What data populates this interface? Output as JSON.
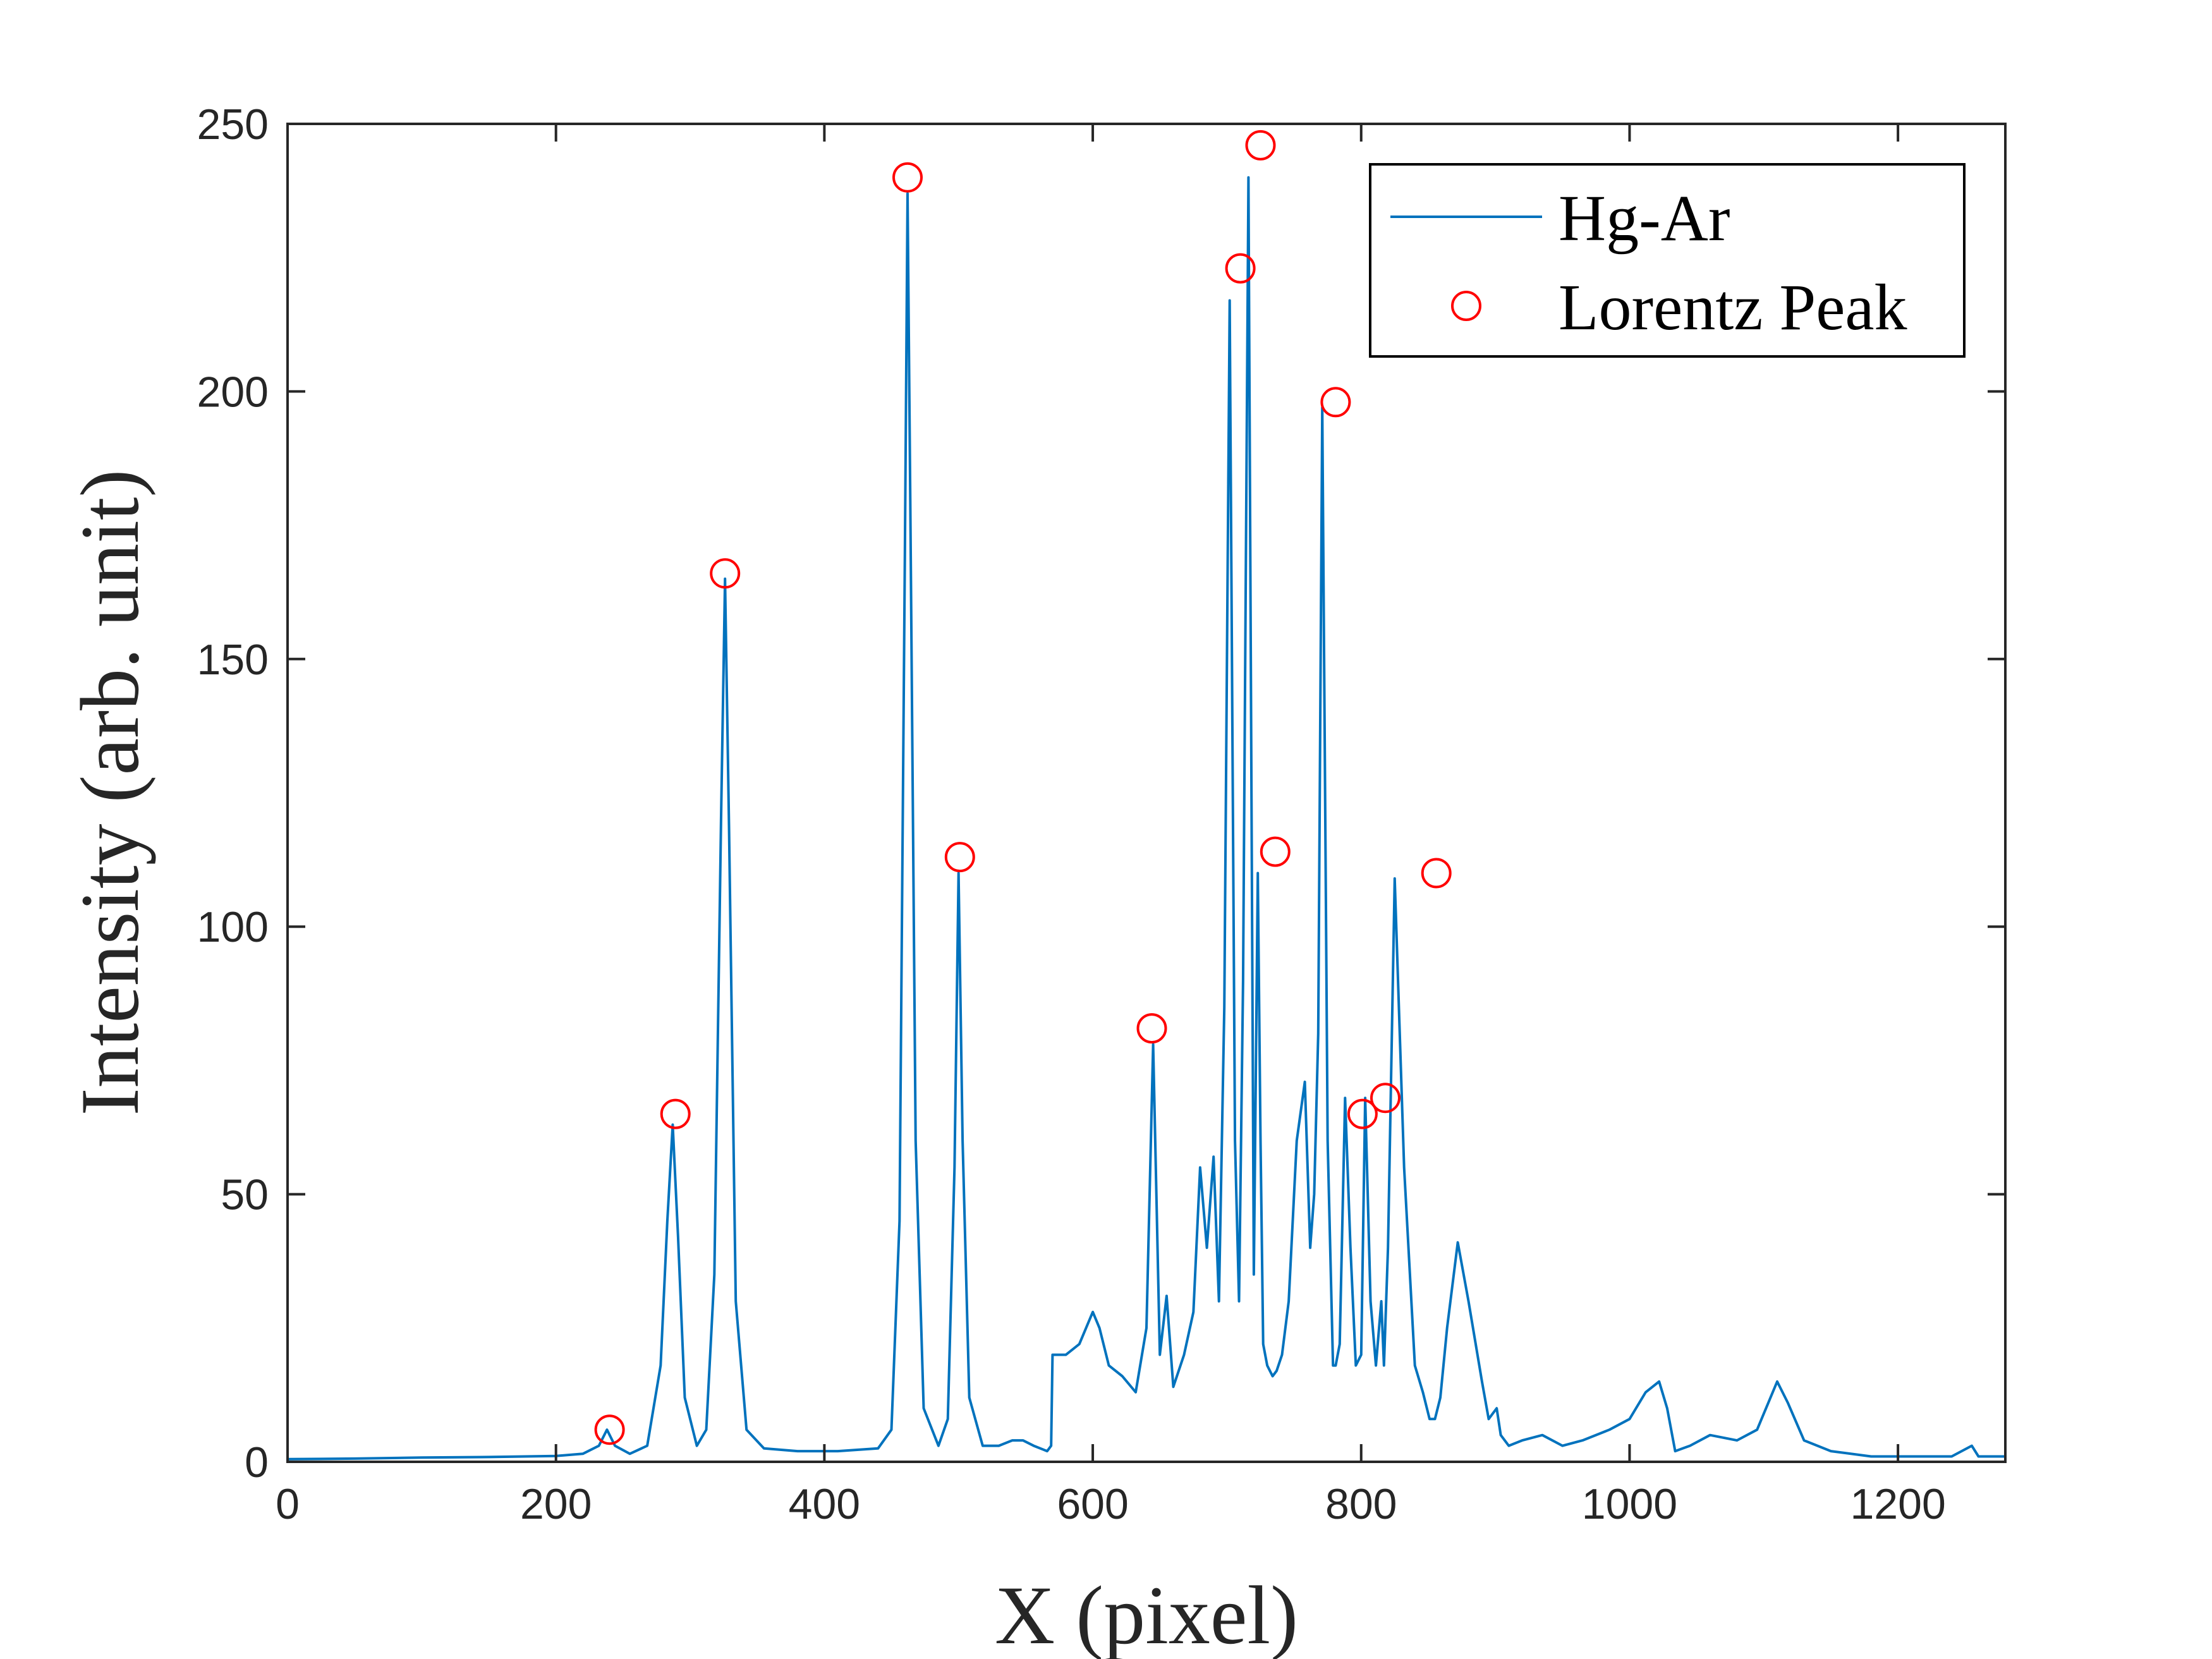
{
  "chart_data": {
    "type": "line",
    "title": "",
    "xlabel": "X (pixel)",
    "ylabel": "Intensity (arb. unit)",
    "xlim": [
      0,
      1280
    ],
    "ylim": [
      0,
      250
    ],
    "xticks": [
      0,
      200,
      400,
      600,
      800,
      1000,
      1200
    ],
    "yticks": [
      0,
      50,
      100,
      150,
      200,
      250
    ],
    "grid": false,
    "legend_position": "top-right",
    "series": [
      {
        "name": "Hg-Ar",
        "style": "line",
        "color": "#0072BD",
        "x": [
          0,
          50,
          100,
          150,
          200,
          220,
          232,
          238,
          244,
          255,
          268,
          278,
          283,
          287,
          291,
          296,
          305,
          312,
          318,
          323,
          326,
          329,
          334,
          342,
          355,
          380,
          410,
          440,
          450,
          456,
          460,
          462,
          464,
          468,
          474,
          485,
          492,
          497,
          500,
          503,
          508,
          518,
          530,
          540,
          548,
          556,
          566,
          569,
          570,
          580,
          590,
          600,
          605,
          612,
          622,
          632,
          640,
          645,
          650,
          655,
          660,
          668,
          675,
          680,
          685,
          690,
          694,
          698,
          702,
          706,
          709,
          712,
          716,
          720,
          723,
          725,
          727,
          730,
          734,
          737,
          741,
          746,
          752,
          758,
          762,
          765,
          768,
          771,
          775,
          779,
          781,
          784,
          788,
          792,
          796,
          800,
          803,
          807,
          811,
          815,
          817,
          820,
          825,
          832,
          840,
          846,
          851,
          855,
          859,
          864,
          872,
          880,
          890,
          895,
          898,
          901,
          904,
          910,
          920,
          935,
          950,
          965,
          985,
          1000,
          1012,
          1022,
          1028,
          1034,
          1045,
          1060,
          1080,
          1095,
          1105,
          1110,
          1118,
          1130,
          1150,
          1180,
          1210,
          1240,
          1255,
          1260,
          1280
        ],
        "y": [
          0.5,
          0.6,
          0.8,
          0.9,
          1.1,
          1.5,
          3,
          6,
          3,
          1.5,
          3,
          18,
          45,
          63,
          42,
          12,
          3,
          6,
          35,
          120,
          165,
          118,
          30,
          6,
          2.5,
          2,
          2,
          2.5,
          6,
          45,
          170,
          237,
          180,
          60,
          10,
          3,
          8,
          55,
          110,
          60,
          12,
          3,
          3,
          4,
          4,
          3,
          2,
          3,
          20,
          20,
          22,
          28,
          25,
          18,
          16,
          13,
          25,
          78,
          20,
          31,
          14,
          20,
          28,
          55,
          40,
          57,
          30,
          85,
          217,
          60,
          30,
          90,
          240,
          35,
          110,
          60,
          22,
          18,
          16,
          17,
          20,
          30,
          60,
          71,
          40,
          50,
          80,
          197,
          60,
          18,
          18,
          22,
          68,
          40,
          18,
          20,
          68,
          30,
          18,
          30,
          18,
          40,
          109,
          55,
          18,
          13,
          8,
          8,
          12,
          25,
          41,
          30,
          15,
          8,
          9,
          10,
          5,
          3,
          4,
          5,
          3,
          4,
          6,
          8,
          13,
          15,
          10,
          2,
          3,
          5,
          4,
          6,
          12,
          15,
          11,
          4,
          2,
          1,
          1,
          1,
          3,
          1,
          1
        ]
      },
      {
        "name": "Lorentz Peak",
        "style": "markers",
        "marker": "circle",
        "color": "#FF0000",
        "x": [
          240,
          289,
          326,
          462,
          501,
          644,
          710,
          725,
          736,
          781,
          801,
          818,
          856
        ],
        "y": [
          6,
          65,
          166,
          240,
          113,
          81,
          223,
          246,
          114,
          198,
          65,
          68,
          110
        ]
      }
    ]
  }
}
